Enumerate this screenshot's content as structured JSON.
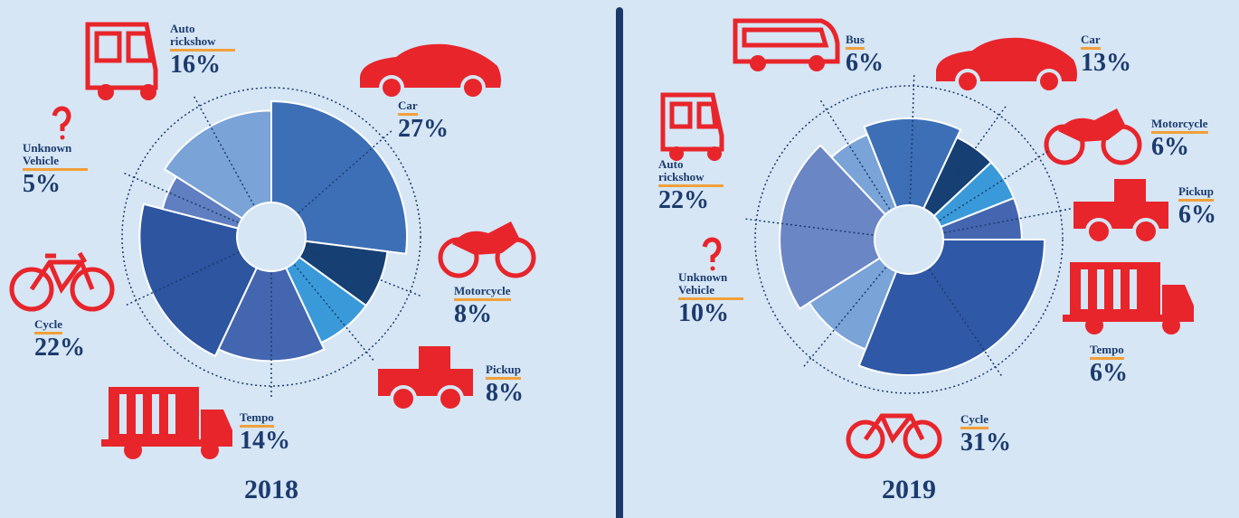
{
  "chart_data": [
    {
      "type": "pie",
      "title": "2018",
      "categories": [
        "Car",
        "Motorcycle",
        "Pickup",
        "Tempo",
        "Cycle",
        "Unknown Vehicle",
        "Auto rickshow"
      ],
      "values": [
        27,
        8,
        8,
        14,
        22,
        5,
        16
      ],
      "value_labels": [
        "27%",
        "8%",
        "8%",
        "14%",
        "22%",
        "5%",
        "16%"
      ],
      "colors": [
        "#3d6fb6",
        "#163f73",
        "#3a9ad9",
        "#4466b0",
        "#2d55a0",
        "#5f7fc0",
        "#7aa3d8"
      ]
    },
    {
      "type": "pie",
      "title": "2019",
      "categories": [
        "Car",
        "Motorcycle",
        "Pickup",
        "Tempo",
        "Cycle",
        "Unknown Vehicle",
        "Auto rickshow",
        "Bus"
      ],
      "values": [
        13,
        6,
        6,
        6,
        31,
        10,
        22,
        6
      ],
      "value_labels": [
        "13%",
        "6%",
        "6%",
        "6%",
        "31%",
        "10%",
        "22%",
        "6%"
      ],
      "colors": [
        "#3d6fb6",
        "#163f73",
        "#3a9ad9",
        "#4466b0",
        "#2f58a6",
        "#7aa3d8",
        "#6b86c4",
        "#7aa3d8"
      ]
    }
  ]
}
